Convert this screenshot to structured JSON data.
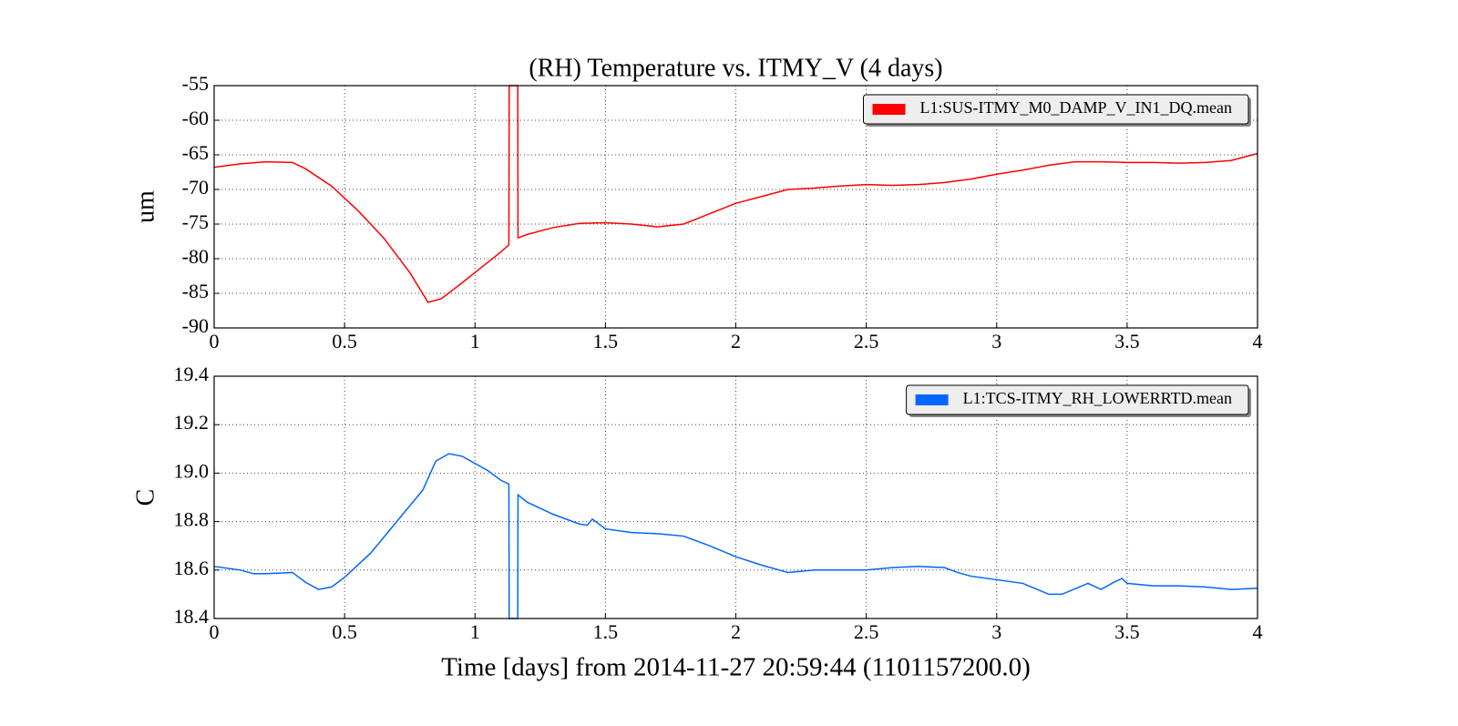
{
  "chart_data": [
    {
      "type": "line",
      "title": "(RH) Temperature vs. ITMY_V (4 days)",
      "y_label": "um",
      "x": [
        0,
        0.1,
        0.2,
        0.3,
        0.35,
        0.45,
        0.55,
        0.65,
        0.75,
        0.82,
        0.87,
        0.95,
        1.0,
        1.05,
        1.1,
        1.13,
        1.131,
        1.164,
        1.165,
        1.2,
        1.3,
        1.4,
        1.5,
        1.6,
        1.7,
        1.8,
        1.9,
        2.0,
        2.1,
        2.18,
        2.2,
        2.3,
        2.4,
        2.5,
        2.6,
        2.7,
        2.8,
        2.9,
        3.0,
        3.1,
        3.2,
        3.3,
        3.4,
        3.5,
        3.6,
        3.7,
        3.8,
        3.9,
        4.0
      ],
      "series": [
        {
          "name": "L1:SUS-ITMY_M0_DAMP_V_IN1_DQ.mean",
          "color": "#ff0000",
          "values": [
            -66.8,
            -66.3,
            -66,
            -66.1,
            -67,
            -69.5,
            -73,
            -77,
            -82,
            -86.3,
            -85.8,
            -83.5,
            -82,
            -80.5,
            -79,
            -78,
            -55,
            -55,
            -77,
            -76.5,
            -75.5,
            -74.9,
            -74.8,
            -75,
            -75.4,
            -75,
            -73.5,
            -72,
            -71,
            -70.2,
            -70,
            -69.8,
            -69.5,
            -69.3,
            -69.4,
            -69.3,
            -69,
            -68.5,
            -67.8,
            -67.2,
            -66.5,
            -66,
            -66,
            -66.1,
            -66.1,
            -66.2,
            -66.1,
            -65.8,
            -64.8
          ]
        }
      ],
      "xlim": [
        0,
        4
      ],
      "xticks": [
        0,
        0.5,
        1,
        1.5,
        2,
        2.5,
        3,
        3.5,
        4
      ],
      "ylim": [
        -90,
        -55
      ],
      "yticks": [
        -90,
        -85,
        -80,
        -75,
        -70,
        -65,
        -60,
        -55
      ],
      "grid": true,
      "legend": "upper right"
    },
    {
      "type": "line",
      "x_label": "Time [days] from 2014-11-27 20:59:44 (1101157200.0)",
      "y_label": "C",
      "x": [
        0,
        0.1,
        0.15,
        0.2,
        0.3,
        0.35,
        0.4,
        0.45,
        0.5,
        0.6,
        0.7,
        0.8,
        0.85,
        0.9,
        0.95,
        1.0,
        1.05,
        1.1,
        1.13,
        1.131,
        1.164,
        1.165,
        1.2,
        1.3,
        1.4,
        1.43,
        1.45,
        1.5,
        1.6,
        1.7,
        1.8,
        1.9,
        2.0,
        2.1,
        2.2,
        2.3,
        2.4,
        2.5,
        2.6,
        2.7,
        2.8,
        2.85,
        2.9,
        3.0,
        3.1,
        3.2,
        3.25,
        3.35,
        3.4,
        3.45,
        3.48,
        3.5,
        3.6,
        3.7,
        3.8,
        3.9,
        4.0
      ],
      "series": [
        {
          "name": "L1:TCS-ITMY_RH_LOWERRTD.mean",
          "color": "#0066ff",
          "values": [
            18.615,
            18.6,
            18.585,
            18.585,
            18.59,
            18.55,
            18.52,
            18.53,
            18.57,
            18.67,
            18.8,
            18.93,
            19.05,
            19.08,
            19.07,
            19.04,
            19.01,
            18.97,
            18.955,
            18.4,
            18.4,
            18.91,
            18.88,
            18.83,
            18.79,
            18.785,
            18.81,
            18.77,
            18.755,
            18.75,
            18.74,
            18.7,
            18.655,
            18.62,
            18.59,
            18.6,
            18.6,
            18.6,
            18.61,
            18.615,
            18.61,
            18.59,
            18.575,
            18.56,
            18.545,
            18.5,
            18.5,
            18.545,
            18.52,
            18.55,
            18.565,
            18.545,
            18.535,
            18.535,
            18.53,
            18.52,
            18.525
          ]
        }
      ],
      "xlim": [
        0,
        4
      ],
      "xticks": [
        0,
        0.5,
        1,
        1.5,
        2,
        2.5,
        3,
        3.5,
        4
      ],
      "ylim": [
        18.4,
        19.4
      ],
      "yticks": [
        18.4,
        18.6,
        18.8,
        {
          "value": 19,
          "label": "19.0"
        },
        19.2,
        19.4
      ],
      "grid": true,
      "legend": "upper right"
    }
  ]
}
